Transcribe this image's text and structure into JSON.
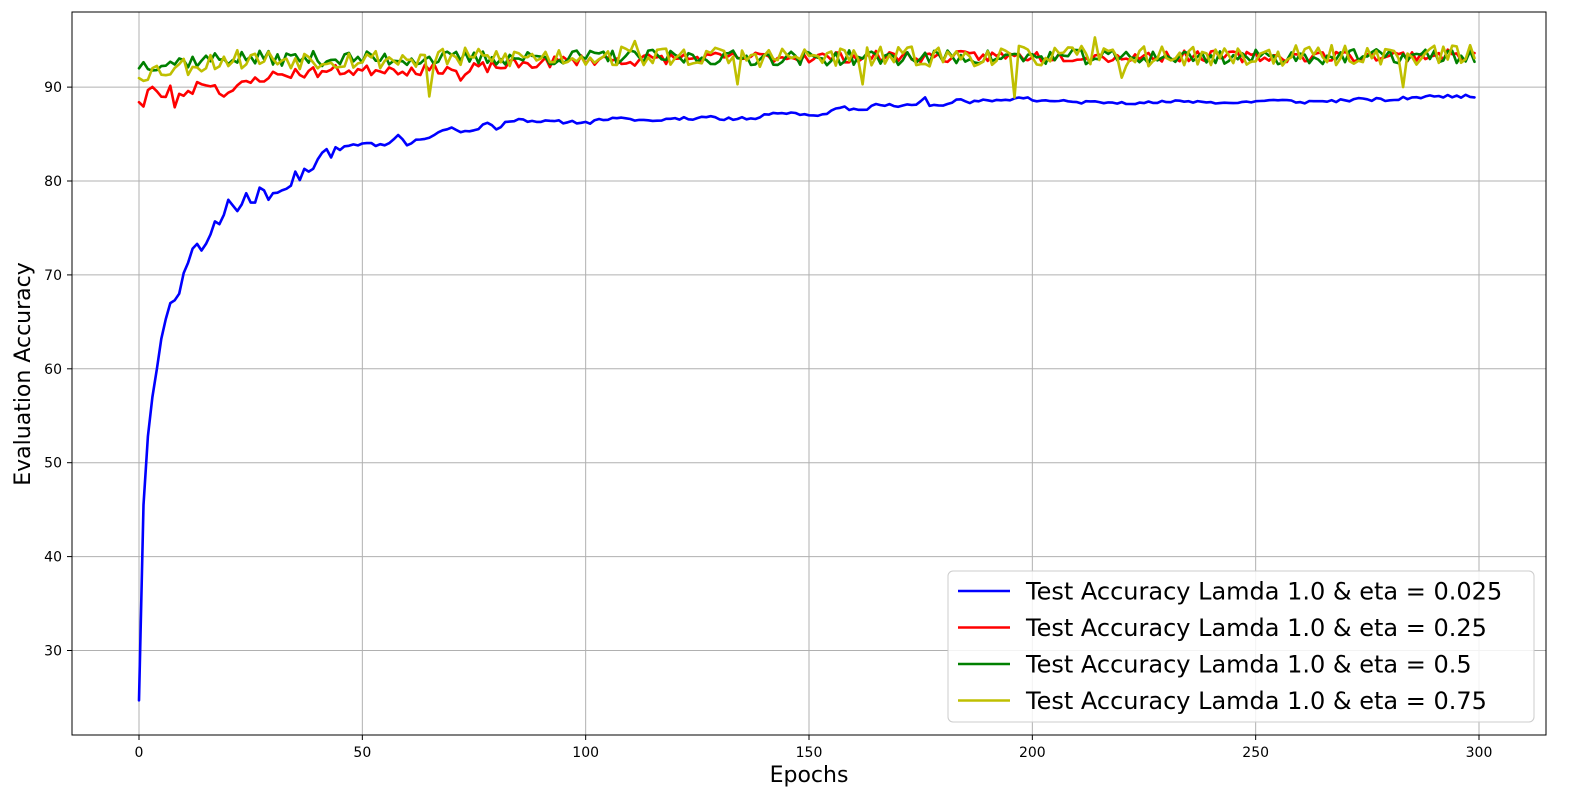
{
  "chart_data": {
    "type": "line",
    "title": "",
    "xlabel": "Epochs",
    "ylabel": "Evaluation Accuracy",
    "xlim": [
      -15,
      315
    ],
    "ylim": [
      21,
      98
    ],
    "xticks": [
      0,
      50,
      100,
      150,
      200,
      250,
      300
    ],
    "yticks": [
      30,
      40,
      50,
      60,
      70,
      80,
      90
    ],
    "grid": true,
    "legend_position": "lower-right",
    "x_range": [
      0,
      299
    ],
    "series": [
      {
        "name": "Test Accuracy Lamda 1.0 & eta = 0.025",
        "color": "#0000ff",
        "anchors": [
          [
            0,
            24.7
          ],
          [
            1,
            45.5
          ],
          [
            2,
            52.8
          ],
          [
            3,
            57.0
          ],
          [
            4,
            60.0
          ],
          [
            5,
            63.2
          ],
          [
            6,
            65.3
          ],
          [
            7,
            67.0
          ],
          [
            8,
            67.3
          ],
          [
            9,
            68.0
          ],
          [
            10,
            70.2
          ],
          [
            11,
            71.3
          ],
          [
            12,
            72.8
          ],
          [
            13,
            73.3
          ],
          [
            14,
            72.6
          ],
          [
            15,
            73.3
          ],
          [
            16,
            74.3
          ],
          [
            17,
            75.7
          ],
          [
            18,
            75.4
          ],
          [
            19,
            76.4
          ],
          [
            20,
            78.0
          ],
          [
            21,
            77.4
          ],
          [
            22,
            76.8
          ],
          [
            23,
            77.5
          ],
          [
            24,
            78.7
          ],
          [
            25,
            77.7
          ],
          [
            26,
            77.7
          ],
          [
            27,
            79.3
          ],
          [
            28,
            79.0
          ],
          [
            29,
            78.0
          ],
          [
            30,
            78.7
          ],
          [
            32,
            79.0
          ],
          [
            34,
            79.5
          ],
          [
            35,
            81.0
          ],
          [
            36,
            80.1
          ],
          [
            37,
            81.3
          ],
          [
            38,
            81.0
          ],
          [
            39,
            81.3
          ],
          [
            40,
            82.3
          ],
          [
            41,
            83.0
          ],
          [
            42,
            83.4
          ],
          [
            43,
            82.5
          ],
          [
            44,
            83.6
          ],
          [
            45,
            83.3
          ],
          [
            46,
            83.7
          ],
          [
            48,
            83.9
          ],
          [
            50,
            84.0
          ],
          [
            55,
            83.8
          ],
          [
            58,
            84.9
          ],
          [
            60,
            83.8
          ],
          [
            62,
            84.4
          ],
          [
            65,
            84.6
          ],
          [
            68,
            85.4
          ],
          [
            70,
            85.7
          ],
          [
            72,
            85.2
          ],
          [
            75,
            85.4
          ],
          [
            78,
            86.2
          ],
          [
            80,
            85.5
          ],
          [
            82,
            86.3
          ],
          [
            85,
            86.6
          ],
          [
            88,
            86.4
          ],
          [
            90,
            86.3
          ],
          [
            100,
            86.3
          ],
          [
            101,
            86.1
          ],
          [
            103,
            86.6
          ],
          [
            110,
            86.6
          ],
          [
            115,
            86.4
          ],
          [
            120,
            86.7
          ],
          [
            125,
            86.7
          ],
          [
            128,
            86.9
          ],
          [
            131,
            86.5
          ],
          [
            135,
            86.8
          ],
          [
            138,
            86.6
          ],
          [
            140,
            87.1
          ],
          [
            143,
            87.2
          ],
          [
            146,
            87.3
          ],
          [
            150,
            87.0
          ],
          [
            153,
            87.1
          ],
          [
            155,
            87.5
          ],
          [
            157,
            87.8
          ],
          [
            160,
            87.7
          ],
          [
            163,
            87.6
          ],
          [
            165,
            88.2
          ],
          [
            170,
            87.9
          ],
          [
            173,
            88.1
          ],
          [
            175,
            88.5
          ],
          [
            176,
            88.9
          ],
          [
            177,
            88.0
          ],
          [
            181,
            88.2
          ],
          [
            184,
            88.7
          ],
          [
            186,
            88.3
          ],
          [
            190,
            88.6
          ],
          [
            193,
            88.6
          ],
          [
            196,
            88.8
          ],
          [
            199,
            88.9
          ],
          [
            200,
            88.6
          ],
          [
            205,
            88.5
          ],
          [
            210,
            88.4
          ],
          [
            215,
            88.4
          ],
          [
            220,
            88.4
          ],
          [
            225,
            88.3
          ],
          [
            230,
            88.4
          ],
          [
            235,
            88.5
          ],
          [
            240,
            88.4
          ],
          [
            245,
            88.3
          ],
          [
            250,
            88.5
          ],
          [
            255,
            88.6
          ],
          [
            260,
            88.4
          ],
          [
            265,
            88.5
          ],
          [
            270,
            88.6
          ],
          [
            275,
            88.7
          ],
          [
            280,
            88.6
          ],
          [
            285,
            88.9
          ],
          [
            290,
            89.0
          ],
          [
            295,
            89.1
          ],
          [
            299,
            88.9
          ]
        ],
        "noise": 0.18,
        "seed": 11
      },
      {
        "name": "Test Accuracy Lamda 1.0 & eta = 0.25",
        "color": "#ff0000",
        "anchors": [
          [
            0,
            88.7
          ],
          [
            1,
            88.1
          ],
          [
            2,
            89.6
          ],
          [
            3,
            90.0
          ],
          [
            5,
            88.6
          ],
          [
            7,
            89.9
          ],
          [
            8,
            88.2
          ],
          [
            10,
            89.4
          ],
          [
            12,
            89.8
          ],
          [
            14,
            90.6
          ],
          [
            16,
            90.4
          ],
          [
            18,
            89.6
          ],
          [
            20,
            89.5
          ],
          [
            22,
            89.8
          ],
          [
            24,
            90.4
          ],
          [
            26,
            90.7
          ],
          [
            28,
            91.1
          ],
          [
            30,
            91.2
          ],
          [
            35,
            91.5
          ],
          [
            40,
            91.6
          ],
          [
            45,
            91.8
          ],
          [
            50,
            91.7
          ],
          [
            55,
            92.0
          ],
          [
            60,
            91.8
          ],
          [
            65,
            91.9
          ],
          [
            70,
            92.1
          ],
          [
            72,
            90.8
          ],
          [
            75,
            92.0
          ],
          [
            80,
            92.2
          ],
          [
            85,
            92.4
          ],
          [
            90,
            92.6
          ],
          [
            95,
            92.8
          ],
          [
            100,
            92.9
          ],
          [
            105,
            93.0
          ],
          [
            110,
            92.8
          ],
          [
            115,
            93.0
          ],
          [
            120,
            93.1
          ],
          [
            130,
            93.1
          ],
          [
            140,
            93.2
          ],
          [
            150,
            93.2
          ],
          [
            160,
            93.2
          ],
          [
            170,
            93.3
          ],
          [
            180,
            93.2
          ],
          [
            190,
            93.3
          ],
          [
            200,
            93.3
          ],
          [
            210,
            93.3
          ],
          [
            220,
            93.2
          ],
          [
            230,
            93.3
          ],
          [
            240,
            93.3
          ],
          [
            250,
            93.2
          ],
          [
            260,
            93.3
          ],
          [
            270,
            93.3
          ],
          [
            280,
            93.3
          ],
          [
            290,
            93.4
          ],
          [
            299,
            93.4
          ]
        ],
        "noise": 0.6,
        "seed": 23
      },
      {
        "name": "Test Accuracy Lamda 1.0 & eta = 0.5",
        "color": "#008000",
        "anchors": [
          [
            0,
            92.4
          ],
          [
            20,
            93.1
          ],
          [
            60,
            93.0
          ],
          [
            100,
            93.2
          ],
          [
            150,
            93.1
          ],
          [
            200,
            93.2
          ],
          [
            250,
            93.2
          ],
          [
            299,
            93.3
          ]
        ],
        "noise": 0.8,
        "seed": 37
      },
      {
        "name": "Test Accuracy Lamda 1.0 & eta = 0.75",
        "color": "#bfbf00",
        "anchors": [
          [
            0,
            91.5
          ],
          [
            20,
            93.0
          ],
          [
            60,
            93.0
          ],
          [
            100,
            93.3
          ],
          [
            150,
            93.2
          ],
          [
            200,
            93.3
          ],
          [
            250,
            93.3
          ],
          [
            299,
            93.5
          ]
        ],
        "noise": 1.1,
        "seed": 53,
        "dips": [
          [
            65,
            89.0
          ],
          [
            111,
            94.9
          ],
          [
            134,
            90.3
          ],
          [
            162,
            90.3
          ],
          [
            196,
            88.9
          ],
          [
            214,
            95.3
          ],
          [
            220,
            91.0
          ],
          [
            283,
            90.0
          ]
        ]
      }
    ]
  }
}
